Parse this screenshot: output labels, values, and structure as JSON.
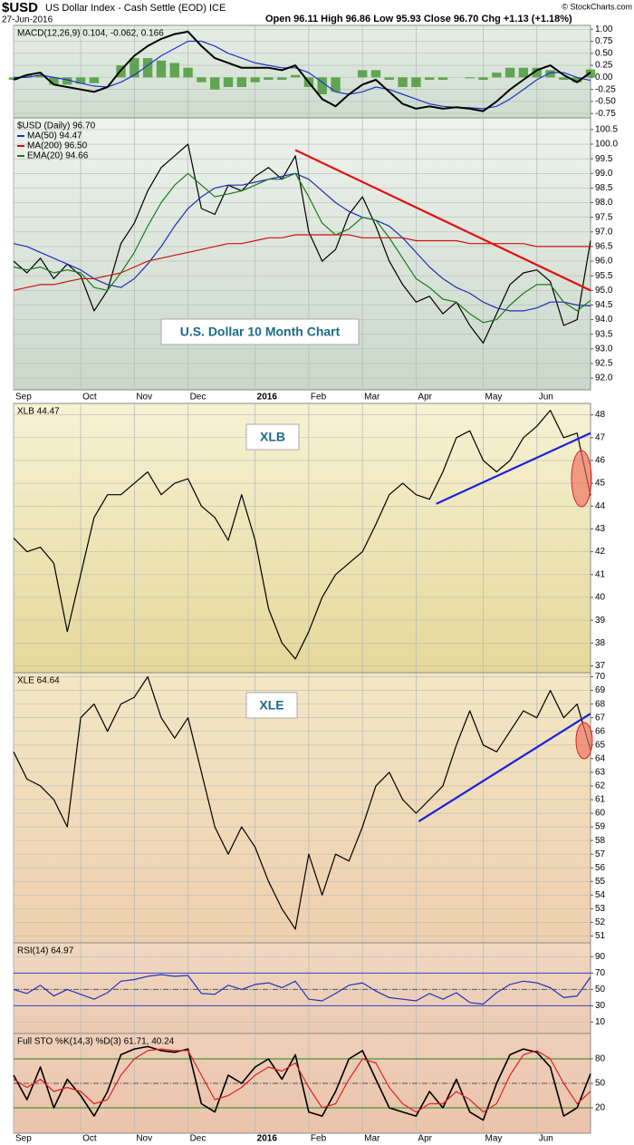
{
  "header": {
    "symbol": "$USD",
    "name": "US Dollar Index - Cash Settle (EOD) ICE",
    "date": "27-Jun-2016",
    "quote": "Open 96.11 High 96.86 Low 95.93 Close 96.70 Chg +1.13 (+1.18%)",
    "credit": "© StockCharts.com"
  },
  "chart_data": [
    {
      "type": "macd",
      "title": "MACD(12,26,9) 0.104, -0.062, 0.166",
      "ylim": [
        -0.84,
        1.08
      ],
      "yticks": [
        {
          "value": 1,
          "label": "1.00"
        },
        {
          "value": 0.75,
          "label": "0.75"
        },
        {
          "value": 0.5,
          "label": "0.50"
        },
        {
          "value": 0.25,
          "label": "0.25"
        },
        {
          "value": 0,
          "label": "0.00"
        },
        {
          "value": -0.25,
          "label": "-0.25"
        },
        {
          "value": -0.5,
          "label": "-0.50"
        },
        {
          "value": -0.75,
          "label": "-0.75"
        }
      ],
      "series": [
        {
          "style": "histogram",
          "color": "#4a9a3a",
          "values": [
            -0.05,
            0.05,
            0.05,
            -0.15,
            -0.15,
            -0.13,
            -0.12,
            0.0,
            0.25,
            0.4,
            0.4,
            0.35,
            0.3,
            0.2,
            -0.1,
            -0.25,
            -0.2,
            -0.2,
            -0.1,
            -0.05,
            -0.05,
            0.05,
            -0.2,
            -0.35,
            -0.3,
            0.0,
            0.15,
            0.15,
            -0.05,
            -0.2,
            -0.2,
            -0.05,
            -0.05,
            0.0,
            -0.02,
            -0.05,
            0.1,
            0.2,
            0.2,
            0.2,
            0.15,
            -0.05,
            -0.1,
            0.166
          ]
        },
        {
          "style": "line",
          "color": "#2233cc",
          "values": [
            0.0,
            0.0,
            0.05,
            0.0,
            -0.05,
            -0.12,
            -0.18,
            -0.2,
            -0.1,
            0.05,
            0.25,
            0.45,
            0.6,
            0.75,
            0.75,
            0.65,
            0.5,
            0.4,
            0.3,
            0.25,
            0.2,
            0.2,
            0.1,
            -0.1,
            -0.3,
            -0.35,
            -0.3,
            -0.2,
            -0.25,
            -0.35,
            -0.45,
            -0.55,
            -0.6,
            -0.62,
            -0.63,
            -0.65,
            -0.6,
            -0.45,
            -0.25,
            -0.05,
            0.1,
            0.1,
            0.0,
            -0.062
          ]
        },
        {
          "style": "line",
          "color": "#000000",
          "width": 2,
          "values": [
            -0.05,
            0.05,
            0.1,
            -0.15,
            -0.2,
            -0.25,
            -0.3,
            -0.2,
            0.15,
            0.45,
            0.65,
            0.8,
            0.9,
            0.95,
            0.65,
            0.4,
            0.3,
            0.2,
            0.2,
            0.2,
            0.15,
            0.25,
            -0.1,
            -0.45,
            -0.6,
            -0.35,
            -0.15,
            -0.05,
            -0.3,
            -0.55,
            -0.65,
            -0.6,
            -0.65,
            -0.62,
            -0.65,
            -0.7,
            -0.5,
            -0.25,
            -0.05,
            0.15,
            0.25,
            0.05,
            -0.1,
            0.104
          ]
        }
      ]
    },
    {
      "type": "line",
      "title": "$USD (Daily) 96.70",
      "annotation": "U.S. Dollar 10 Month Chart",
      "categories": [
        "Sep",
        null,
        null,
        null,
        null,
        "Oct",
        null,
        null,
        null,
        "Nov",
        null,
        null,
        null,
        "Dec",
        null,
        null,
        null,
        null,
        "2016",
        null,
        null,
        null,
        "Feb",
        null,
        null,
        null,
        "Mar",
        null,
        null,
        null,
        "Apr",
        null,
        null,
        null,
        null,
        "May",
        null,
        null,
        null,
        "Jun",
        null,
        null,
        null,
        null
      ],
      "ylim": [
        91.6,
        100.9
      ],
      "yticks": [
        {
          "value": 92,
          "label": "92.0"
        },
        92.5,
        {
          "value": 93,
          "label": "93.0"
        },
        93.5,
        {
          "value": 94,
          "label": "94.0"
        },
        94.5,
        {
          "value": 95,
          "label": "95.0"
        },
        95.5,
        {
          "value": 96,
          "label": "96.0"
        },
        96.5,
        {
          "value": 97,
          "label": "97.0"
        },
        97.5,
        {
          "value": 98,
          "label": "98.0"
        },
        98.5,
        {
          "value": 99,
          "label": "99.0"
        },
        99.5,
        {
          "value": 100,
          "label": "100.0"
        },
        100.5
      ],
      "trendline": {
        "color": "#e01010",
        "start": [
          21,
          99.8
        ],
        "end": [
          43,
          95.0
        ]
      },
      "series": [
        {
          "color": "#000000",
          "values": [
            96.0,
            95.6,
            96.1,
            95.4,
            95.9,
            95.5,
            94.3,
            95.0,
            96.6,
            97.3,
            98.4,
            99.2,
            99.6,
            100.0,
            97.8,
            97.6,
            98.6,
            98.4,
            98.9,
            99.2,
            98.8,
            99.6,
            97.0,
            96.0,
            96.4,
            97.6,
            98.2,
            97.2,
            96.0,
            95.2,
            94.6,
            94.8,
            94.2,
            94.6,
            93.8,
            93.2,
            94.2,
            95.2,
            95.6,
            95.7,
            95.3,
            93.8,
            94.0,
            96.7
          ]
        },
        {
          "name": "MA(50) 94.47",
          "color": "#1f2fb0",
          "values": [
            96.6,
            96.5,
            96.3,
            96.1,
            95.9,
            95.7,
            95.4,
            95.2,
            95.1,
            95.4,
            95.9,
            96.5,
            97.2,
            97.8,
            98.2,
            98.5,
            98.6,
            98.6,
            98.7,
            98.8,
            98.9,
            99.0,
            98.8,
            98.4,
            98.0,
            97.7,
            97.5,
            97.4,
            97.2,
            96.8,
            96.3,
            95.8,
            95.4,
            95.1,
            94.9,
            94.6,
            94.4,
            94.3,
            94.3,
            94.4,
            94.6,
            94.6,
            94.5,
            94.47
          ]
        },
        {
          "name": "MA(200) 96.50",
          "color": "#cc1111",
          "values": [
            95.0,
            95.1,
            95.2,
            95.2,
            95.3,
            95.4,
            95.4,
            95.5,
            95.6,
            95.8,
            96.0,
            96.1,
            96.2,
            96.3,
            96.4,
            96.5,
            96.6,
            96.6,
            96.7,
            96.8,
            96.8,
            96.9,
            96.9,
            96.9,
            96.9,
            96.9,
            96.8,
            96.8,
            96.8,
            96.8,
            96.7,
            96.7,
            96.7,
            96.7,
            96.6,
            96.6,
            96.6,
            96.6,
            96.6,
            96.5,
            96.5,
            96.5,
            96.5,
            96.5
          ]
        },
        {
          "name": "EMA(20) 94.66",
          "color": "#1a7a1a",
          "values": [
            95.8,
            95.7,
            95.8,
            95.6,
            95.7,
            95.6,
            95.1,
            95.0,
            95.6,
            96.3,
            97.2,
            98.0,
            98.6,
            99.0,
            98.6,
            98.2,
            98.3,
            98.4,
            98.6,
            98.8,
            98.8,
            99.0,
            98.2,
            97.3,
            96.9,
            97.1,
            97.5,
            97.4,
            96.8,
            96.1,
            95.4,
            95.1,
            94.7,
            94.6,
            94.2,
            93.9,
            94.0,
            94.5,
            94.9,
            95.2,
            95.2,
            94.6,
            94.3,
            94.66
          ]
        }
      ]
    },
    {
      "type": "line",
      "title": "XLB 44.47",
      "annotation": "XLB",
      "ylim": [
        36.7,
        48.5
      ],
      "yticks": [
        37,
        38,
        39,
        40,
        41,
        42,
        43,
        44,
        45,
        46,
        47,
        48
      ],
      "trendline": {
        "color": "#1a22dd",
        "start": [
          31.5,
          44.1
        ],
        "end": [
          43,
          47.2
        ]
      },
      "series": [
        {
          "color": "#000000",
          "values": [
            42.6,
            42.0,
            42.2,
            41.5,
            38.5,
            41.0,
            43.5,
            44.5,
            44.5,
            45.0,
            45.5,
            44.5,
            45.0,
            45.2,
            44.0,
            43.5,
            42.5,
            44.5,
            42.5,
            39.5,
            38.0,
            37.3,
            38.5,
            40.0,
            41.0,
            41.5,
            42.0,
            43.2,
            44.5,
            45.0,
            44.5,
            44.3,
            45.5,
            47.0,
            47.3,
            46.0,
            45.5,
            46.0,
            47.0,
            47.5,
            48.2,
            47.0,
            47.2,
            44.47
          ]
        }
      ]
    },
    {
      "type": "line",
      "title": "XLE 64.64",
      "annotation": "XLE",
      "ylim": [
        50.5,
        70.3
      ],
      "yticks": [
        51,
        52,
        53,
        54,
        55,
        56,
        57,
        58,
        59,
        60,
        61,
        62,
        63,
        64,
        65,
        66,
        67,
        68,
        69,
        70
      ],
      "trendline": {
        "color": "#1a22dd",
        "start": [
          30.2,
          59.4
        ],
        "end": [
          43,
          67.3
        ]
      },
      "series": [
        {
          "color": "#000000",
          "values": [
            64.5,
            62.5,
            62.0,
            61.0,
            59.0,
            67.0,
            68.0,
            66.0,
            68.0,
            68.5,
            70.0,
            67.0,
            65.5,
            67.0,
            63.0,
            59.0,
            57.0,
            59.0,
            57.5,
            55.0,
            53.0,
            51.5,
            57.0,
            54.0,
            57.0,
            56.5,
            59.0,
            62.0,
            63.0,
            61.0,
            60.0,
            61.0,
            62.0,
            65.0,
            67.5,
            65.0,
            64.5,
            66.0,
            67.5,
            67.0,
            69.0,
            67.0,
            68.0,
            64.64
          ]
        }
      ]
    },
    {
      "type": "line",
      "title": "RSI(14) 64.97",
      "ylim": [
        -4,
        107
      ],
      "yticks": [
        10,
        30,
        50,
        70,
        90
      ],
      "reference_lines": [
        {
          "value": 70,
          "color": "#3344cc"
        },
        {
          "value": 50,
          "color": "#555555",
          "dash": true
        },
        {
          "value": 30,
          "color": "#3344cc"
        }
      ],
      "series": [
        {
          "color": "#2233bb",
          "values": [
            50,
            45,
            55,
            42,
            50,
            44,
            38,
            46,
            60,
            62,
            66,
            68,
            66,
            67,
            45,
            44,
            55,
            50,
            56,
            58,
            52,
            60,
            38,
            36,
            45,
            55,
            58,
            48,
            40,
            38,
            36,
            45,
            38,
            46,
            34,
            32,
            46,
            56,
            60,
            58,
            52,
            40,
            42,
            64.97
          ]
        }
      ]
    },
    {
      "type": "line",
      "title": "Full STO %K(14,3) %D(3) 61.71, 40.24",
      "categories": [
        "Sep",
        null,
        null,
        null,
        null,
        "Oct",
        null,
        null,
        null,
        "Nov",
        null,
        null,
        null,
        "Dec",
        null,
        null,
        null,
        null,
        "2016",
        null,
        null,
        null,
        "Feb",
        null,
        null,
        null,
        "Mar",
        null,
        null,
        null,
        "Apr",
        null,
        null,
        null,
        null,
        "May",
        null,
        null,
        null,
        "Jun",
        null,
        null,
        null,
        null
      ],
      "ylim": [
        -11,
        111
      ],
      "yticks": [
        20,
        50,
        80
      ],
      "reference_lines": [
        {
          "value": 80,
          "color": "#1a8a1a"
        },
        {
          "value": 50,
          "color": "#555555",
          "dash": true
        },
        {
          "value": 20,
          "color": "#1a8a1a"
        }
      ],
      "series": [
        {
          "color": "#000000",
          "width": 1.6,
          "values": [
            60,
            30,
            70,
            20,
            55,
            35,
            10,
            40,
            85,
            92,
            95,
            90,
            88,
            92,
            25,
            15,
            60,
            50,
            70,
            80,
            55,
            85,
            15,
            10,
            40,
            80,
            90,
            55,
            20,
            15,
            10,
            40,
            20,
            55,
            15,
            5,
            50,
            85,
            92,
            88,
            70,
            10,
            20,
            61.71
          ]
        },
        {
          "color": "#e02020",
          "values": [
            55,
            45,
            55,
            40,
            45,
            40,
            25,
            30,
            60,
            80,
            90,
            92,
            90,
            90,
            60,
            30,
            35,
            45,
            60,
            70,
            65,
            75,
            45,
            20,
            25,
            55,
            80,
            75,
            45,
            25,
            15,
            25,
            25,
            40,
            30,
            15,
            25,
            60,
            85,
            90,
            80,
            50,
            25,
            40.24
          ]
        }
      ]
    }
  ]
}
